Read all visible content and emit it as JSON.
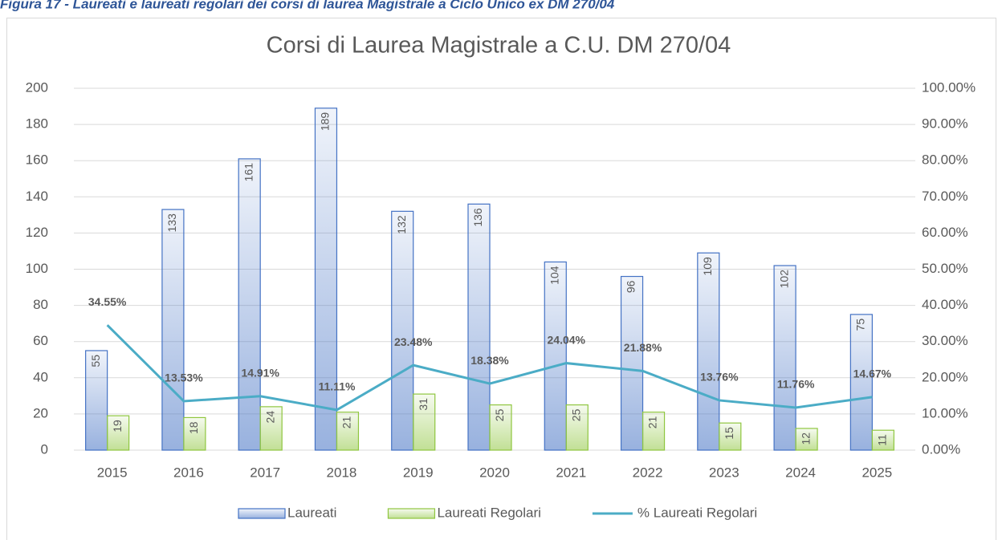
{
  "caption": "Figura 17 - Laureati e laureati regolari dei corsi di laurea Magistrale a Ciclo Unico ex DM 270/04",
  "chart_data": {
    "type": "bar",
    "title": "Corsi di Laurea Magistrale a C.U. DM 270/04",
    "categories": [
      "2015",
      "2016",
      "2017",
      "2018",
      "2019",
      "2020",
      "2021",
      "2022",
      "2023",
      "2024",
      "2025"
    ],
    "series": [
      {
        "name": "Laureati",
        "type": "bar",
        "color": "#4472c4",
        "values": [
          55,
          133,
          161,
          189,
          132,
          136,
          104,
          96,
          109,
          102,
          75
        ]
      },
      {
        "name": "Laureati Regolari",
        "type": "bar",
        "color": "#8fc63f",
        "values": [
          19,
          18,
          24,
          21,
          31,
          25,
          25,
          21,
          15,
          12,
          11
        ]
      },
      {
        "name": "% Laureati Regolari",
        "type": "line",
        "axis": "y2",
        "color": "#4bacc6",
        "values": [
          34.55,
          13.53,
          14.91,
          11.11,
          23.48,
          18.38,
          24.04,
          21.88,
          13.76,
          11.76,
          14.67
        ],
        "value_labels": [
          "34.55%",
          "13.53%",
          "14.91%",
          "11.11%",
          "23.48%",
          "18.38%",
          "24.04%",
          "21.88%",
          "13.76%",
          "11.76%",
          "14.67%"
        ]
      }
    ],
    "ylim": [
      0,
      200
    ],
    "yticks": [
      0,
      20,
      40,
      60,
      80,
      100,
      120,
      140,
      160,
      180,
      200
    ],
    "y2lim": [
      0,
      100
    ],
    "y2ticks": [
      {
        "value": 0,
        "label": "0.00%"
      },
      {
        "value": 10,
        "label": "10.00%"
      },
      {
        "value": 20,
        "label": "20.00%"
      },
      {
        "value": 30,
        "label": "30.00%"
      },
      {
        "value": 40,
        "label": "40.00%"
      },
      {
        "value": 50,
        "label": "50.00%"
      },
      {
        "value": 60,
        "label": "60.00%"
      },
      {
        "value": 70,
        "label": "70.00%"
      },
      {
        "value": 80,
        "label": "80.00%"
      },
      {
        "value": 90,
        "label": "90.00%"
      },
      {
        "value": 100,
        "label": "100.00%"
      }
    ],
    "grid": true,
    "legend": "bottom"
  }
}
